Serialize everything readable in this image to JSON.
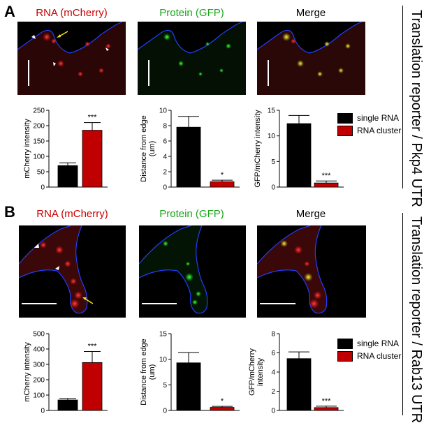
{
  "sections": [
    {
      "letter": "A",
      "side_label": "Translation reporter / Pkp4 UTR",
      "titles": {
        "rna": "RNA (mCherry)",
        "protein": "Protein (GFP)",
        "merge": "Merge"
      },
      "colors": {
        "rna_title": "#c80000",
        "protein_title": "#1aa51a",
        "merge_title": "#000000"
      }
    },
    {
      "letter": "B",
      "side_label": "Translation reporter / Rab13 UTR",
      "titles": {
        "rna": "RNA (mCherry)",
        "protein": "Protein (GFP)",
        "merge": "Merge"
      },
      "colors": {
        "rna_title": "#c80000",
        "protein_title": "#1aa51a",
        "merge_title": "#000000"
      }
    }
  ],
  "legend": {
    "single_label": "single RNA",
    "cluster_label": "RNA cluster",
    "single_color": "#000000",
    "cluster_color": "#c00000"
  },
  "chart_data": [
    {
      "id": "A1",
      "type": "bar",
      "categories": [
        "single RNA",
        "RNA cluster"
      ],
      "values": [
        70,
        185
      ],
      "errors": [
        9,
        25
      ],
      "ylabel": "mCherry intensity",
      "ylim": [
        0,
        250
      ],
      "yticks": [
        0,
        50,
        100,
        150,
        200,
        250
      ],
      "sig": "***"
    },
    {
      "id": "A2",
      "type": "bar",
      "categories": [
        "single RNA",
        "RNA cluster"
      ],
      "values": [
        7.8,
        0.7
      ],
      "errors": [
        1.4,
        0.2
      ],
      "ylabel": "Distance from edge (um)",
      "ylim": [
        0,
        10
      ],
      "yticks": [
        0,
        2,
        4,
        6,
        8,
        10
      ],
      "sig": "*"
    },
    {
      "id": "A3",
      "type": "bar",
      "categories": [
        "single RNA",
        "RNA cluster"
      ],
      "values": [
        12.4,
        0.8
      ],
      "errors": [
        1.6,
        0.4
      ],
      "ylabel": "GFP/mCherry intensity",
      "ylim": [
        0,
        15
      ],
      "yticks": [
        0,
        5,
        10,
        15
      ],
      "sig": "***"
    },
    {
      "id": "B1",
      "type": "bar",
      "categories": [
        "single RNA",
        "RNA cluster"
      ],
      "values": [
        68,
        312
      ],
      "errors": [
        10,
        72
      ],
      "ylabel": "mCherry intensity",
      "ylim": [
        0,
        500
      ],
      "yticks": [
        0,
        100,
        200,
        300,
        400,
        500
      ],
      "sig": "***"
    },
    {
      "id": "B2",
      "type": "bar",
      "categories": [
        "single RNA",
        "RNA cluster"
      ],
      "values": [
        9.3,
        0.6
      ],
      "errors": [
        2.0,
        0.2
      ],
      "ylabel": "Distance from edge (um)",
      "ylim": [
        0,
        15
      ],
      "yticks": [
        0,
        5,
        10,
        15
      ],
      "sig": "*"
    },
    {
      "id": "B3",
      "type": "bar",
      "categories": [
        "single RNA",
        "RNA cluster"
      ],
      "values": [
        5.4,
        0.3
      ],
      "errors": [
        0.7,
        0.15
      ],
      "ylabel": "GFP/mCherry intensity",
      "ylim": [
        0,
        8
      ],
      "yticks": [
        0,
        2,
        4,
        6,
        8
      ],
      "sig": "***"
    }
  ]
}
